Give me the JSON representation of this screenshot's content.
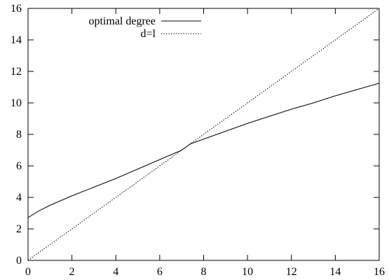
{
  "chart_data": {
    "type": "line",
    "title": "",
    "xlabel": "",
    "ylabel": "",
    "xlim": [
      0,
      16
    ],
    "ylim": [
      0,
      16
    ],
    "x_ticks": [
      0,
      2,
      4,
      6,
      8,
      10,
      12,
      14,
      16
    ],
    "y_ticks": [
      0,
      2,
      4,
      6,
      8,
      10,
      12,
      14,
      16
    ],
    "x_tick_labels": [
      "0",
      "2",
      "4",
      "6",
      "8",
      "10",
      "12",
      "14",
      "16"
    ],
    "y_tick_labels": [
      "0",
      "2",
      "4",
      "6",
      "8",
      "10",
      "12",
      "14",
      "16"
    ],
    "grid": false,
    "legend_position": "top-left",
    "series": [
      {
        "name": "optimal degree",
        "style": "solid",
        "color": "#000000",
        "x": [
          0,
          0.5,
          1,
          2,
          3,
          4,
          5,
          6,
          7,
          7.4,
          8,
          9,
          10,
          11,
          12,
          13,
          14,
          15,
          16
        ],
        "y": [
          2.72,
          3.15,
          3.5,
          4.1,
          4.65,
          5.2,
          5.8,
          6.4,
          7.0,
          7.4,
          7.7,
          8.2,
          8.7,
          9.15,
          9.6,
          10.0,
          10.45,
          10.85,
          11.25
        ]
      },
      {
        "name": "d=l",
        "style": "dotted",
        "color": "#000000",
        "x": [
          0,
          16
        ],
        "y": [
          0,
          16
        ]
      }
    ]
  }
}
